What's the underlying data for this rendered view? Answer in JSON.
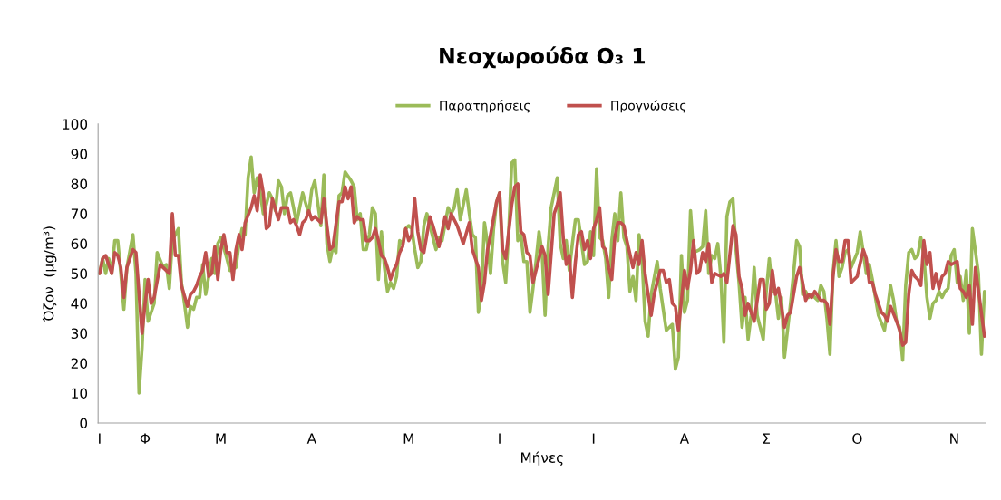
{
  "chart_data": {
    "type": "line",
    "title": "Νεοχωρούδα O₃ 1",
    "xlabel": "Μήνες",
    "ylabel": "Όζον  (μg/m³)",
    "ylim": [
      0,
      100
    ],
    "yticks": [
      0,
      10,
      20,
      30,
      40,
      50,
      60,
      70,
      80,
      90,
      100
    ],
    "categories": [
      "Ι",
      null,
      null,
      null,
      null,
      null,
      null,
      null,
      null,
      null,
      null,
      null,
      null,
      null,
      null,
      "Φ",
      null,
      null,
      null,
      null,
      null,
      null,
      null,
      null,
      null,
      null,
      null,
      null,
      null,
      null,
      null,
      null,
      null,
      null,
      null,
      null,
      null,
      null,
      null,
      null,
      "Μ",
      null,
      null,
      null,
      null,
      null,
      null,
      null,
      null,
      null,
      null,
      null,
      null,
      null,
      null,
      null,
      null,
      null,
      null,
      null,
      null,
      null,
      null,
      null,
      null,
      null,
      null,
      null,
      null,
      null,
      "Α",
      null,
      null,
      null,
      null,
      null,
      null,
      null,
      null,
      null,
      null,
      null,
      null,
      null,
      null,
      null,
      null,
      null,
      null,
      null,
      null,
      null,
      null,
      null,
      null,
      null,
      null,
      null,
      null,
      null,
      null,
      null,
      "Μ",
      null,
      null,
      null,
      null,
      null,
      null,
      null,
      null,
      null,
      null,
      null,
      null,
      null,
      null,
      null,
      null,
      null,
      null,
      null,
      null,
      null,
      null,
      null,
      null,
      null,
      null,
      null,
      null,
      null,
      "Ι",
      null,
      null,
      null,
      null,
      null,
      null,
      null,
      null,
      null,
      null,
      null,
      null,
      null,
      null,
      null,
      null,
      null,
      null,
      null,
      null,
      null,
      null,
      null,
      null,
      null,
      null,
      null,
      null,
      null,
      null,
      "Ι",
      null,
      null,
      null,
      null,
      null,
      null,
      null,
      null,
      null,
      null,
      null,
      null,
      null,
      null,
      null,
      null,
      null,
      null,
      null,
      null,
      null,
      null,
      null,
      null,
      null,
      null,
      null,
      null,
      null,
      "Α",
      null,
      null,
      null,
      null,
      null,
      null,
      null,
      null,
      null,
      null,
      null,
      null,
      null,
      null,
      null,
      null,
      null,
      null,
      null,
      null,
      null,
      null,
      null,
      null,
      null,
      null,
      "Σ",
      null,
      null,
      null,
      null,
      null,
      null,
      null,
      null,
      null,
      null,
      null,
      null,
      null,
      null,
      null,
      null,
      null,
      null,
      null,
      null,
      null,
      null,
      null,
      null,
      null,
      null,
      null,
      null,
      null,
      "Ο",
      null,
      null,
      null,
      null,
      null,
      null,
      null,
      null,
      null,
      null,
      null,
      null,
      null,
      null,
      null,
      null,
      null,
      null,
      null,
      null,
      null,
      null,
      null,
      null,
      null,
      null,
      null,
      null,
      null,
      null,
      null,
      "Ν",
      null,
      null,
      null,
      null,
      null,
      null,
      null,
      null,
      null,
      null
    ],
    "grid": false,
    "legend": "top",
    "marker": "none",
    "line_style": "solid",
    "series": [
      {
        "name": "Παρατηρήσεις",
        "color": "#9bbb59",
        "values": [
          50,
          55,
          50,
          55,
          50,
          61,
          61,
          50,
          38,
          52,
          null,
          63,
          50,
          10,
          25,
          48,
          34,
          null,
          40,
          57,
          null,
          52,
          53,
          45,
          61,
          63,
          65,
          47,
          40,
          32,
          39,
          38,
          42,
          42,
          53,
          43,
          null,
          55,
          50,
          60,
          62,
          null,
          55,
          51,
          null,
          52,
          60,
          65,
          63,
          82,
          89,
          77,
          82,
          77,
          70,
          73,
          77,
          75,
          71,
          81,
          79,
          70,
          76,
          77,
          72,
          67,
          null,
          77,
          null,
          70,
          78,
          81,
          null,
          66,
          83,
          60,
          54,
          59,
          57,
          76,
          77,
          84,
          null,
          81,
          79,
          68,
          70,
          58,
          58,
          63,
          72,
          70,
          48,
          64,
          52,
          44,
          47,
          45,
          49,
          61,
          60,
          65,
          66,
          65,
          58,
          52,
          54,
          66,
          70,
          66,
          null,
          58,
          62,
          61,
          null,
          72,
          70,
          72,
          78,
          68,
          73,
          78,
          70,
          63,
          62,
          37,
          44,
          67,
          60,
          50,
          65,
          74,
          77,
          54,
          47,
          64,
          87,
          88,
          61,
          63,
          54,
          54,
          37,
          45,
          54,
          64,
          57,
          36,
          59,
          72,
          77,
          82,
          60,
          55,
          61,
          51,
          60,
          68,
          68,
          null,
          53,
          54,
          64,
          56,
          85,
          62,
          61,
          55,
          42,
          61,
          70,
          61,
          77,
          62,
          59,
          44,
          49,
          41,
          63,
          55,
          34,
          29,
          43,
          null,
          54,
          45,
          null,
          31,
          null,
          33,
          18,
          22,
          56,
          37,
          41,
          71,
          57,
          null,
          58,
          59,
          71,
          50,
          56,
          55,
          60,
          49,
          27,
          69,
          74,
          75,
          58,
          47,
          32,
          42,
          28,
          36,
          52,
          36,
          null,
          28,
          44,
          55,
          44,
          44,
          35,
          42,
          22,
          null,
          40,
          50,
          61,
          59,
          43,
          44,
          42,
          43,
          42,
          41,
          46,
          44,
          35,
          23,
          50,
          61,
          49,
          52,
          57,
          58,
          52,
          null,
          57,
          64,
          57,
          50,
          53,
          48,
          42,
          36,
          null,
          31,
          38,
          46,
          41,
          34,
          32,
          21,
          46,
          57,
          58,
          55,
          56,
          62,
          56,
          42,
          35,
          40,
          41,
          44,
          42,
          44,
          45,
          56,
          58,
          47,
          49,
          41,
          51,
          30,
          65,
          null,
          50,
          23,
          44
        ]
      },
      {
        "name": "Προγνώσεις",
        "color": "#c0504d",
        "values": [
          50,
          55,
          56,
          null,
          50,
          57,
          56,
          52,
          42,
          52,
          55,
          58,
          57,
          null,
          30,
          40,
          48,
          40,
          42,
          null,
          53,
          52,
          51,
          50,
          70,
          56,
          56,
          46,
          null,
          39,
          43,
          44,
          46,
          49,
          51,
          57,
          49,
          50,
          59,
          48,
          58,
          63,
          57,
          57,
          48,
          58,
          63,
          58,
          67,
          null,
          72,
          76,
          71,
          83,
          77,
          65,
          66,
          75,
          null,
          68,
          72,
          null,
          72,
          67,
          68,
          66,
          63,
          67,
          68,
          71,
          68,
          69,
          68,
          67,
          75,
          66,
          58,
          59,
          null,
          74,
          74,
          79,
          75,
          79,
          67,
          69,
          68,
          68,
          61,
          61,
          62,
          65,
          61,
          56,
          55,
          52,
          48,
          51,
          53,
          57,
          59,
          65,
          61,
          63,
          75,
          64,
          58,
          57,
          null,
          69,
          66,
          null,
          59,
          64,
          69,
          65,
          70,
          68,
          66,
          null,
          60,
          null,
          67,
          58,
          null,
          52,
          41,
          47,
          58,
          63,
          null,
          74,
          77,
          58,
          55,
          64,
          73,
          79,
          80,
          64,
          63,
          57,
          56,
          47,
          51,
          null,
          59,
          56,
          43,
          null,
          70,
          73,
          77,
          62,
          53,
          56,
          42,
          54,
          63,
          64,
          58,
          61,
          55,
          65,
          68,
          72,
          59,
          58,
          52,
          48,
          62,
          67,
          67,
          66,
          61,
          null,
          52,
          57,
          53,
          61,
          50,
          null,
          36,
          43,
          null,
          51,
          51,
          47,
          48,
          40,
          39,
          31,
          null,
          51,
          45,
          51,
          61,
          50,
          51,
          57,
          54,
          60,
          47,
          50,
          null,
          49,
          50,
          47,
          null,
          66,
          63,
          49,
          45,
          36,
          40,
          null,
          34,
          null,
          48,
          48,
          38,
          40,
          51,
          43,
          45,
          39,
          32,
          36,
          37,
          43,
          49,
          52,
          47,
          41,
          43,
          42,
          44,
          null,
          41,
          41,
          40,
          33,
          49,
          58,
          54,
          54,
          61,
          61,
          47,
          null,
          49,
          null,
          58,
          55,
          47,
          47,
          43,
          null,
          37,
          36,
          34,
          39,
          null,
          34,
          31,
          26,
          27,
          43,
          51,
          49,
          48,
          46,
          61,
          53,
          57,
          45,
          50,
          45,
          49,
          50,
          54,
          53,
          null,
          54,
          45,
          44,
          42,
          46,
          33,
          52,
          null,
          null,
          29
        ]
      }
    ]
  }
}
